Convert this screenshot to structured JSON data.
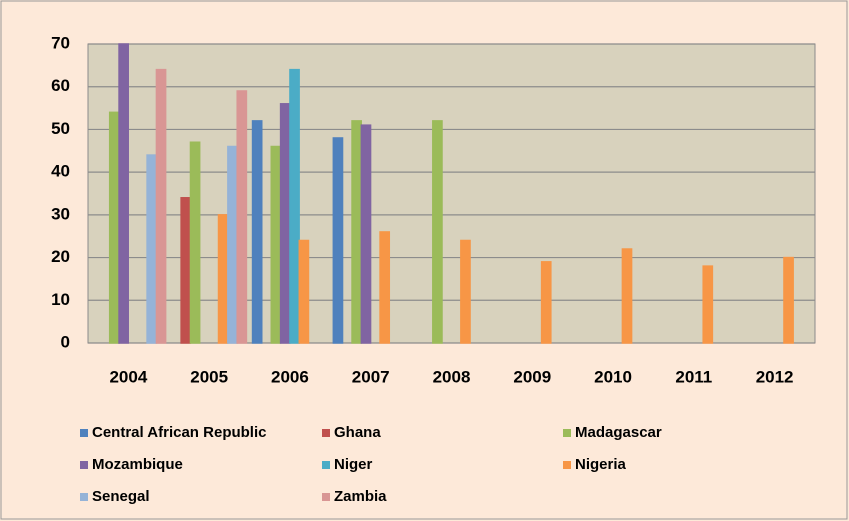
{
  "chart_data": {
    "type": "bar",
    "categories": [
      "2004",
      "2005",
      "2006",
      "2007",
      "2008",
      "2009",
      "2010",
      "2011",
      "2012"
    ],
    "series": [
      {
        "name": "Central African Republic",
        "color": "#4f81bd",
        "values": [
          0,
          0,
          52,
          48,
          0,
          0,
          0,
          0,
          0
        ]
      },
      {
        "name": "Ghana",
        "color": "#c0504d",
        "values": [
          0,
          34,
          0,
          0,
          0,
          0,
          0,
          0,
          0
        ]
      },
      {
        "name": "Madagascar",
        "color": "#9bbb59",
        "values": [
          54,
          47,
          46,
          52,
          52,
          0,
          0,
          0,
          0
        ]
      },
      {
        "name": "Mozambique",
        "color": "#8064a2",
        "values": [
          70,
          0,
          56,
          51,
          0,
          0,
          0,
          0,
          0
        ]
      },
      {
        "name": "Niger",
        "color": "#4bacc6",
        "values": [
          0,
          0,
          64,
          0,
          0,
          0,
          0,
          0,
          0
        ]
      },
      {
        "name": "Nigeria",
        "color": "#f79646",
        "values": [
          0,
          30,
          24,
          26,
          24,
          19,
          22,
          18,
          20
        ]
      },
      {
        "name": "Senegal",
        "color": "#95b3d7",
        "values": [
          44,
          46,
          0,
          0,
          0,
          0,
          0,
          0,
          0
        ]
      },
      {
        "name": "Zambia",
        "color": "#d99694",
        "values": [
          64,
          59,
          0,
          0,
          0,
          0,
          0,
          0,
          0
        ]
      }
    ],
    "ylim": [
      0,
      70
    ],
    "yticks": [
      0,
      10,
      20,
      30,
      40,
      50,
      60,
      70
    ],
    "grid": true,
    "legend": "bottom"
  }
}
